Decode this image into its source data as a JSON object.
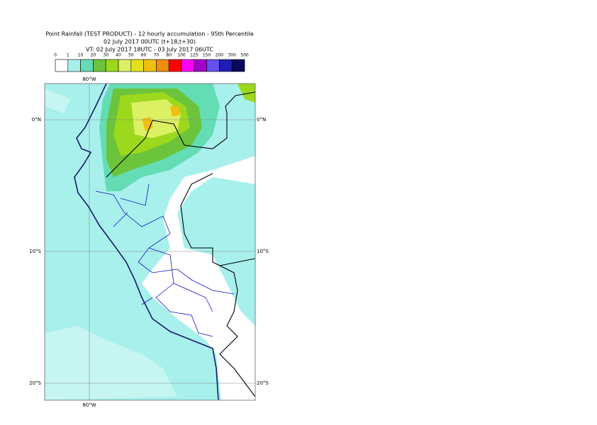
{
  "header": {
    "title": [
      "Point Rainfall (TEST PRODUCT) - 12 hourly accumulation - 95th Percentile",
      "02 July 2017 00UTC (t+18,t+30)",
      "VT: 02 July 2017 18UTC - 03 July 2017 06UTC"
    ]
  },
  "legend": {
    "labels": [
      "0",
      "1",
      "10",
      "20",
      "30",
      "40",
      "50",
      "60",
      "70",
      "80",
      "100",
      "125",
      "150",
      "200",
      "300",
      "500"
    ],
    "colors": [
      "#ffffff",
      "#a8f0ec",
      "#64dcb4",
      "#6cc43c",
      "#9cd81c",
      "#dcf064",
      "#e4e01c",
      "#f0c010",
      "#f08c10",
      "#ff0000",
      "#ff00ff",
      "#a000c8",
      "#6450f0",
      "#1e1eb4",
      "#0a0a5a"
    ]
  },
  "map": {
    "lon_label": "80°W",
    "lat_labels": [
      "0°N",
      "10°S",
      "20°S"
    ]
  }
}
